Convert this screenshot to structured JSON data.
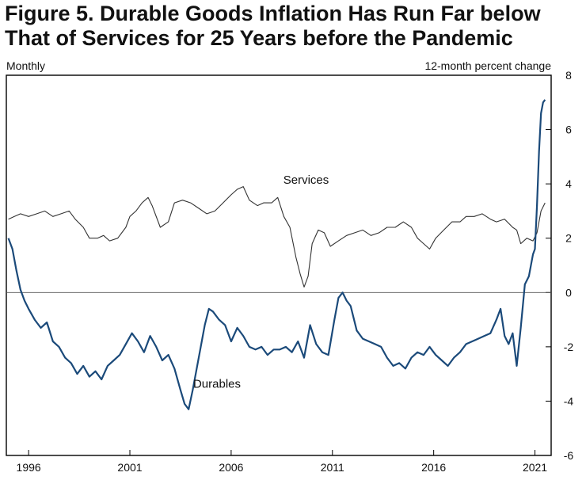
{
  "title_lines": [
    "Figure 5. Durable Goods Inflation Has Run Far below",
    "That of Services for 25 Years before the Pandemic"
  ],
  "chart_data": {
    "type": "line",
    "title": "Figure 5. Durable Goods Inflation Has Run Far below That of Services for 25 Years before the Pandemic",
    "left_label": "Monthly",
    "ylabel": "12-month percent change",
    "xlim": [
      1994.9,
      2021.8
    ],
    "ylim": [
      -6,
      8
    ],
    "y_ticks": [
      8,
      6,
      4,
      2,
      0,
      -2,
      -4,
      -6
    ],
    "x_ticks": [
      1996,
      2001,
      2006,
      2011,
      2016,
      2021
    ],
    "zero_line": true,
    "series": [
      {
        "name": "Services",
        "color": "#333333",
        "x": [
          1995.0,
          1995.3,
          1995.6,
          1996.0,
          1996.4,
          1996.8,
          1997.2,
          1997.6,
          1998.0,
          1998.3,
          1998.7,
          1999.0,
          1999.4,
          1999.7,
          2000.0,
          2000.4,
          2000.8,
          2001.0,
          2001.3,
          2001.6,
          2001.9,
          2002.1,
          2002.5,
          2002.9,
          2003.2,
          2003.6,
          2004.0,
          2004.4,
          2004.8,
          2005.2,
          2005.6,
          2006.0,
          2006.3,
          2006.6,
          2006.9,
          2007.3,
          2007.6,
          2008.0,
          2008.3,
          2008.6,
          2008.9,
          2009.2,
          2009.4,
          2009.6,
          2009.8,
          2010.0,
          2010.3,
          2010.6,
          2010.9,
          2011.3,
          2011.7,
          2012.1,
          2012.5,
          2012.9,
          2013.3,
          2013.7,
          2014.1,
          2014.5,
          2014.9,
          2015.2,
          2015.5,
          2015.8,
          2016.1,
          2016.5,
          2016.9,
          2017.3,
          2017.6,
          2018.0,
          2018.4,
          2018.8,
          2019.1,
          2019.5,
          2019.9,
          2020.1,
          2020.3,
          2020.6,
          2020.9,
          2021.1,
          2021.3,
          2021.5
        ],
        "values": [
          2.7,
          2.8,
          2.9,
          2.8,
          2.9,
          3.0,
          2.8,
          2.9,
          3.0,
          2.7,
          2.4,
          2.0,
          2.0,
          2.1,
          1.9,
          2.0,
          2.4,
          2.8,
          3.0,
          3.3,
          3.5,
          3.2,
          2.4,
          2.6,
          3.3,
          3.4,
          3.3,
          3.1,
          2.9,
          3.0,
          3.3,
          3.6,
          3.8,
          3.9,
          3.4,
          3.2,
          3.3,
          3.3,
          3.5,
          2.8,
          2.4,
          1.3,
          0.7,
          0.2,
          0.6,
          1.8,
          2.3,
          2.2,
          1.7,
          1.9,
          2.1,
          2.2,
          2.3,
          2.1,
          2.2,
          2.4,
          2.4,
          2.6,
          2.4,
          2.0,
          1.8,
          1.6,
          2.0,
          2.3,
          2.6,
          2.6,
          2.8,
          2.8,
          2.9,
          2.7,
          2.6,
          2.7,
          2.4,
          2.3,
          1.8,
          2.0,
          1.9,
          2.2,
          3.0,
          3.3
        ]
      },
      {
        "name": "Durables",
        "color": "#1b4a7a",
        "x": [
          1995.0,
          1995.2,
          1995.4,
          1995.6,
          1995.8,
          1996.0,
          1996.3,
          1996.6,
          1996.9,
          1997.2,
          1997.5,
          1997.8,
          1998.1,
          1998.4,
          1998.7,
          1999.0,
          1999.3,
          1999.6,
          1999.9,
          2000.2,
          2000.5,
          2000.8,
          2001.1,
          2001.4,
          2001.7,
          2002.0,
          2002.3,
          2002.6,
          2002.9,
          2003.2,
          2003.5,
          2003.7,
          2003.9,
          2004.1,
          2004.3,
          2004.5,
          2004.7,
          2004.9,
          2005.1,
          2005.4,
          2005.7,
          2006.0,
          2006.3,
          2006.6,
          2006.9,
          2007.2,
          2007.5,
          2007.8,
          2008.1,
          2008.4,
          2008.7,
          2009.0,
          2009.3,
          2009.6,
          2009.9,
          2010.2,
          2010.5,
          2010.8,
          2011.1,
          2011.3,
          2011.5,
          2011.7,
          2011.9,
          2012.2,
          2012.5,
          2012.8,
          2013.1,
          2013.4,
          2013.7,
          2014.0,
          2014.3,
          2014.6,
          2014.9,
          2015.2,
          2015.5,
          2015.8,
          2016.1,
          2016.4,
          2016.7,
          2017.0,
          2017.3,
          2017.6,
          2017.9,
          2018.2,
          2018.5,
          2018.8,
          2019.1,
          2019.3,
          2019.5,
          2019.7,
          2019.9,
          2020.1,
          2020.3,
          2020.5,
          2020.7,
          2020.9,
          2021.0,
          2021.1,
          2021.2,
          2021.3,
          2021.4,
          2021.5
        ],
        "values": [
          2.0,
          1.6,
          0.8,
          0.1,
          -0.3,
          -0.6,
          -1.0,
          -1.3,
          -1.1,
          -1.8,
          -2.0,
          -2.4,
          -2.6,
          -3.0,
          -2.7,
          -3.1,
          -2.9,
          -3.2,
          -2.7,
          -2.5,
          -2.3,
          -1.9,
          -1.5,
          -1.8,
          -2.2,
          -1.6,
          -2.0,
          -2.5,
          -2.3,
          -2.8,
          -3.6,
          -4.1,
          -4.3,
          -3.6,
          -2.8,
          -2.0,
          -1.2,
          -0.6,
          -0.7,
          -1.0,
          -1.2,
          -1.8,
          -1.3,
          -1.6,
          -2.0,
          -2.1,
          -2.0,
          -2.3,
          -2.1,
          -2.1,
          -2.0,
          -2.2,
          -1.8,
          -2.4,
          -1.2,
          -1.9,
          -2.2,
          -2.3,
          -1.0,
          -0.2,
          0.0,
          -0.3,
          -0.5,
          -1.4,
          -1.7,
          -1.8,
          -1.9,
          -2.0,
          -2.4,
          -2.7,
          -2.6,
          -2.8,
          -2.4,
          -2.2,
          -2.3,
          -2.0,
          -2.3,
          -2.5,
          -2.7,
          -2.4,
          -2.2,
          -1.9,
          -1.8,
          -1.7,
          -1.6,
          -1.5,
          -1.0,
          -0.6,
          -1.6,
          -1.9,
          -1.5,
          -2.7,
          -1.3,
          0.3,
          0.6,
          1.4,
          1.6,
          3.2,
          5.2,
          6.6,
          7.0,
          7.1
        ]
      }
    ],
    "annotations": [
      {
        "text": "Services",
        "x": 2009.7,
        "y": 4.0
      },
      {
        "text": "Durables",
        "x": 2005.3,
        "y": -3.5
      }
    ]
  }
}
